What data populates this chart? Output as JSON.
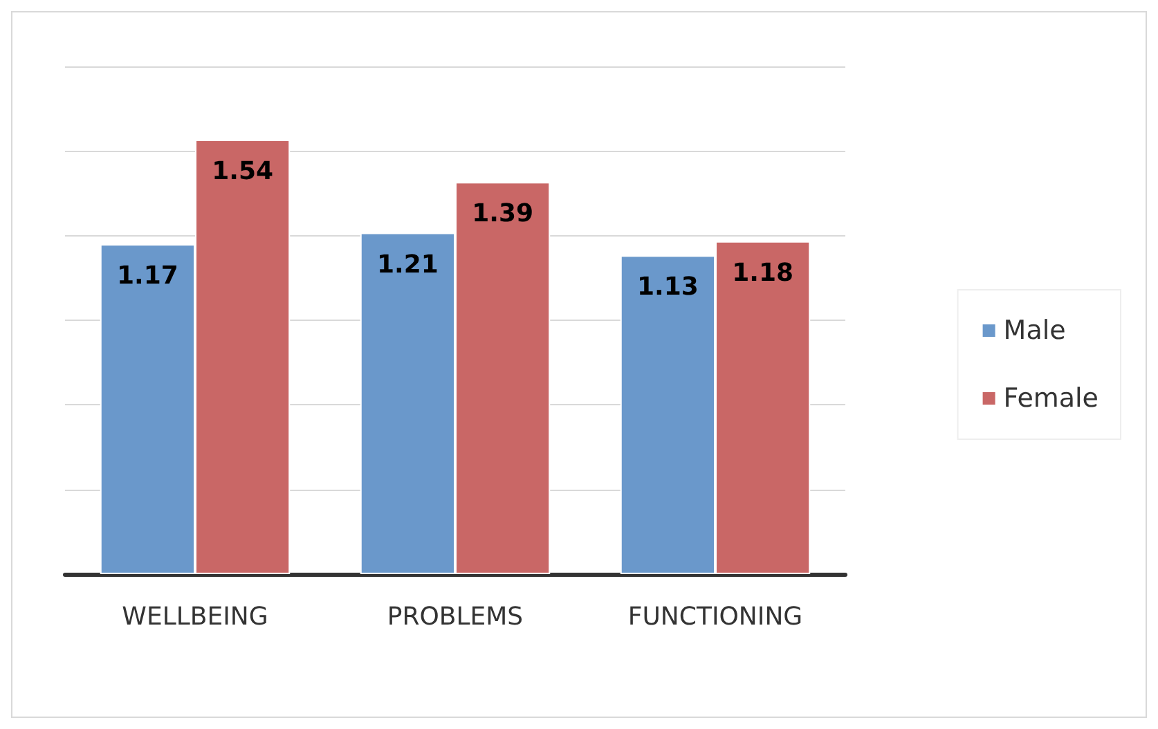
{
  "chart_data": {
    "type": "bar",
    "categories": [
      "WELLBEING",
      "PROBLEMS",
      "FUNCTIONING"
    ],
    "series": [
      {
        "name": "Male",
        "color": "#6a98cb",
        "values": [
          1.17,
          1.21,
          1.13
        ]
      },
      {
        "name": "Female",
        "color": "#c96766",
        "values": [
          1.54,
          1.39,
          1.18
        ]
      }
    ],
    "grid": "y",
    "legend": "right",
    "data_labels": true
  }
}
